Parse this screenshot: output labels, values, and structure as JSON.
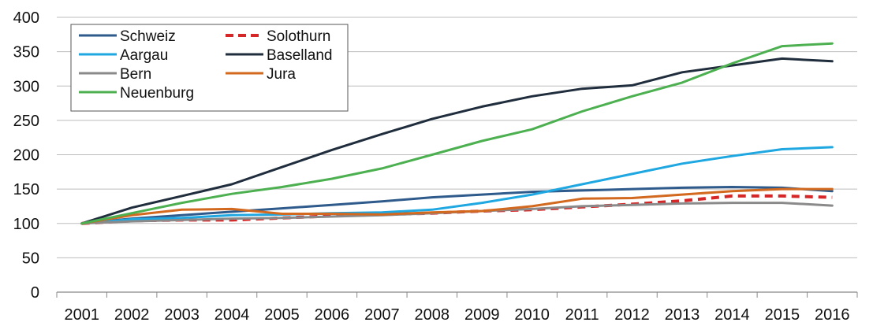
{
  "chart_data": {
    "type": "line",
    "title": "",
    "xlabel": "",
    "ylabel": "",
    "x": [
      "2001",
      "2002",
      "2003",
      "2004",
      "2005",
      "2006",
      "2007",
      "2008",
      "2009",
      "2010",
      "2011",
      "2012",
      "2013",
      "2014",
      "2015",
      "2016"
    ],
    "ylim": [
      0,
      400
    ],
    "yticks": [
      0,
      50,
      100,
      150,
      200,
      250,
      300,
      350,
      400
    ],
    "grid": true,
    "legend_position": "top-left",
    "series": [
      {
        "name": "Schweiz",
        "color": "#2E5B8C",
        "dash": "solid",
        "values": [
          100,
          107,
          112,
          117,
          122,
          127,
          132,
          138,
          142,
          146,
          148,
          150,
          152,
          153,
          152,
          147
        ]
      },
      {
        "name": "Solothurn",
        "color": "#D62728",
        "dash": "dashed",
        "values": [
          100,
          104,
          105,
          105,
          108,
          111,
          113,
          115,
          118,
          120,
          124,
          128,
          133,
          140,
          140,
          138
        ]
      },
      {
        "name": "Aargau",
        "color": "#1EA7E0",
        "dash": "solid",
        "values": [
          100,
          106,
          108,
          112,
          113,
          115,
          116,
          120,
          130,
          142,
          157,
          172,
          187,
          198,
          208,
          211
        ]
      },
      {
        "name": "Baselland",
        "color": "#1F2D3D",
        "dash": "solid",
        "values": [
          100,
          123,
          140,
          157,
          182,
          207,
          230,
          252,
          270,
          285,
          296,
          301,
          320,
          330,
          340,
          336
        ]
      },
      {
        "name": "Bern",
        "color": "#8A8A8A",
        "dash": "solid",
        "values": [
          100,
          103,
          105,
          107,
          108,
          110,
          112,
          115,
          118,
          121,
          125,
          127,
          129,
          130,
          130,
          126
        ]
      },
      {
        "name": "Jura",
        "color": "#D2691E",
        "dash": "solid",
        "values": [
          100,
          112,
          120,
          121,
          114,
          114,
          113,
          116,
          118,
          125,
          136,
          137,
          142,
          147,
          150,
          150
        ]
      },
      {
        "name": "Neuenburg",
        "color": "#4CB050",
        "dash": "solid",
        "values": [
          100,
          115,
          130,
          143,
          153,
          165,
          180,
          200,
          220,
          237,
          263,
          285,
          305,
          333,
          358,
          362
        ]
      }
    ]
  }
}
